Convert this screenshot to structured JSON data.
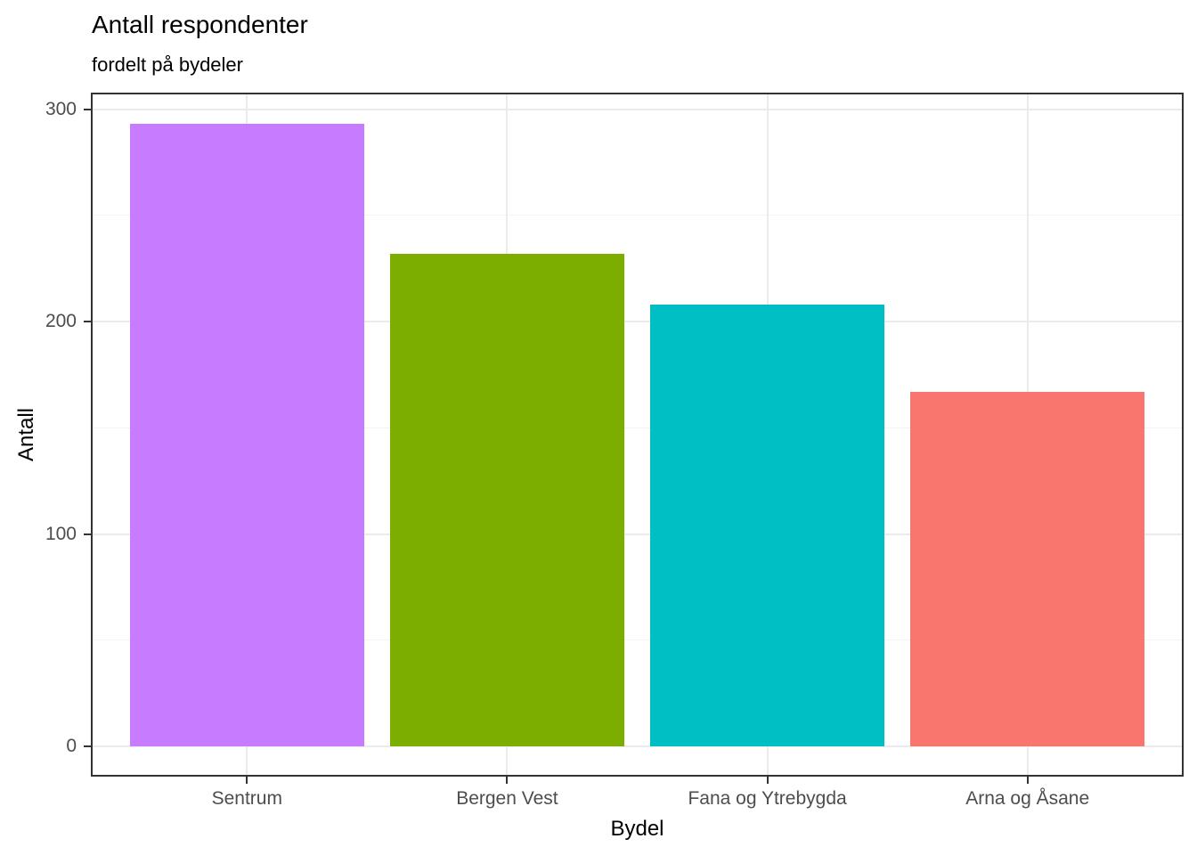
{
  "chart_data": {
    "type": "bar",
    "title": "Antall respondenter",
    "subtitle": "fordelt på bydeler",
    "xlabel": "Bydel",
    "ylabel": "Antall",
    "categories": [
      "Sentrum",
      "Bergen Vest",
      "Fana og Ytrebygda",
      "Arna og Åsane"
    ],
    "values": [
      293,
      232,
      208,
      167
    ],
    "bar_colors": [
      "#C77CFF",
      "#7CAE00",
      "#00BFC4",
      "#F8766D"
    ],
    "ylim": [
      0,
      300
    ],
    "yticks": [
      0,
      100,
      200,
      300
    ],
    "yticks_minor": [
      50,
      150,
      250
    ],
    "bar_width_fraction": 0.9,
    "legend_position": "none",
    "grid": "major horizontal + minor horizontal + major vertical at category centers",
    "style": {
      "panel_background": "#FFFFFF",
      "panel_border_color": "#333333",
      "grid_major_color": "#EBEBEB",
      "grid_minor_color": "#F3F3F3",
      "tick_mark_color": "#333333",
      "tick_label_color": "#4D4D4D",
      "title_color": "#000000",
      "axis_title_color": "#000000"
    }
  }
}
